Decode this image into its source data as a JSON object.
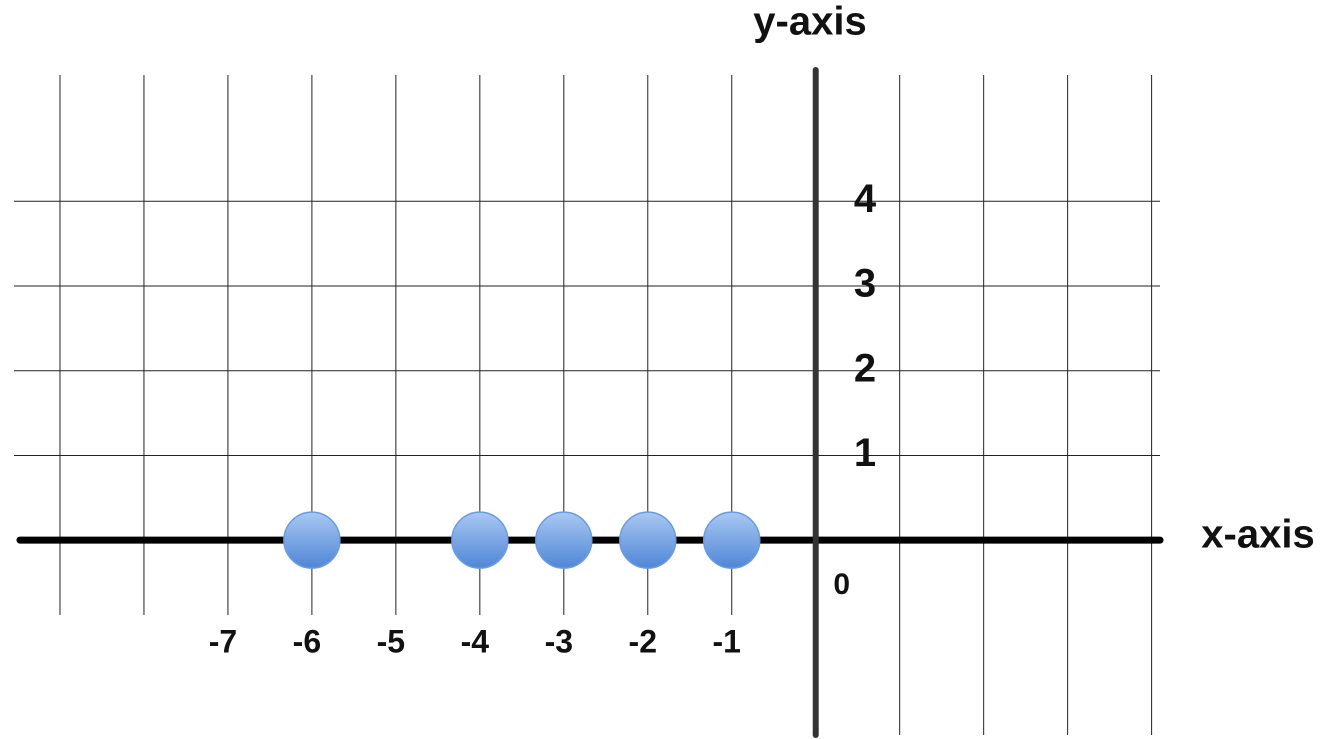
{
  "chart_data": {
    "type": "scatter",
    "x_label": "x-axis",
    "y_label": "y-axis",
    "series": [
      {
        "color": "#6a9be0",
        "x": [
          -6,
          -4,
          -3,
          -2,
          -1
        ],
        "values": [
          0,
          0,
          0,
          0,
          0
        ]
      }
    ],
    "xlim": [
      -9.5,
      4.1
    ],
    "xticks": [
      -7,
      -6,
      -5,
      -4,
      -3,
      -2,
      -1,
      0
    ],
    "ylim": [
      -2.3,
      5.55
    ],
    "yticks": [
      1,
      2,
      3,
      4
    ],
    "grid": true
  }
}
